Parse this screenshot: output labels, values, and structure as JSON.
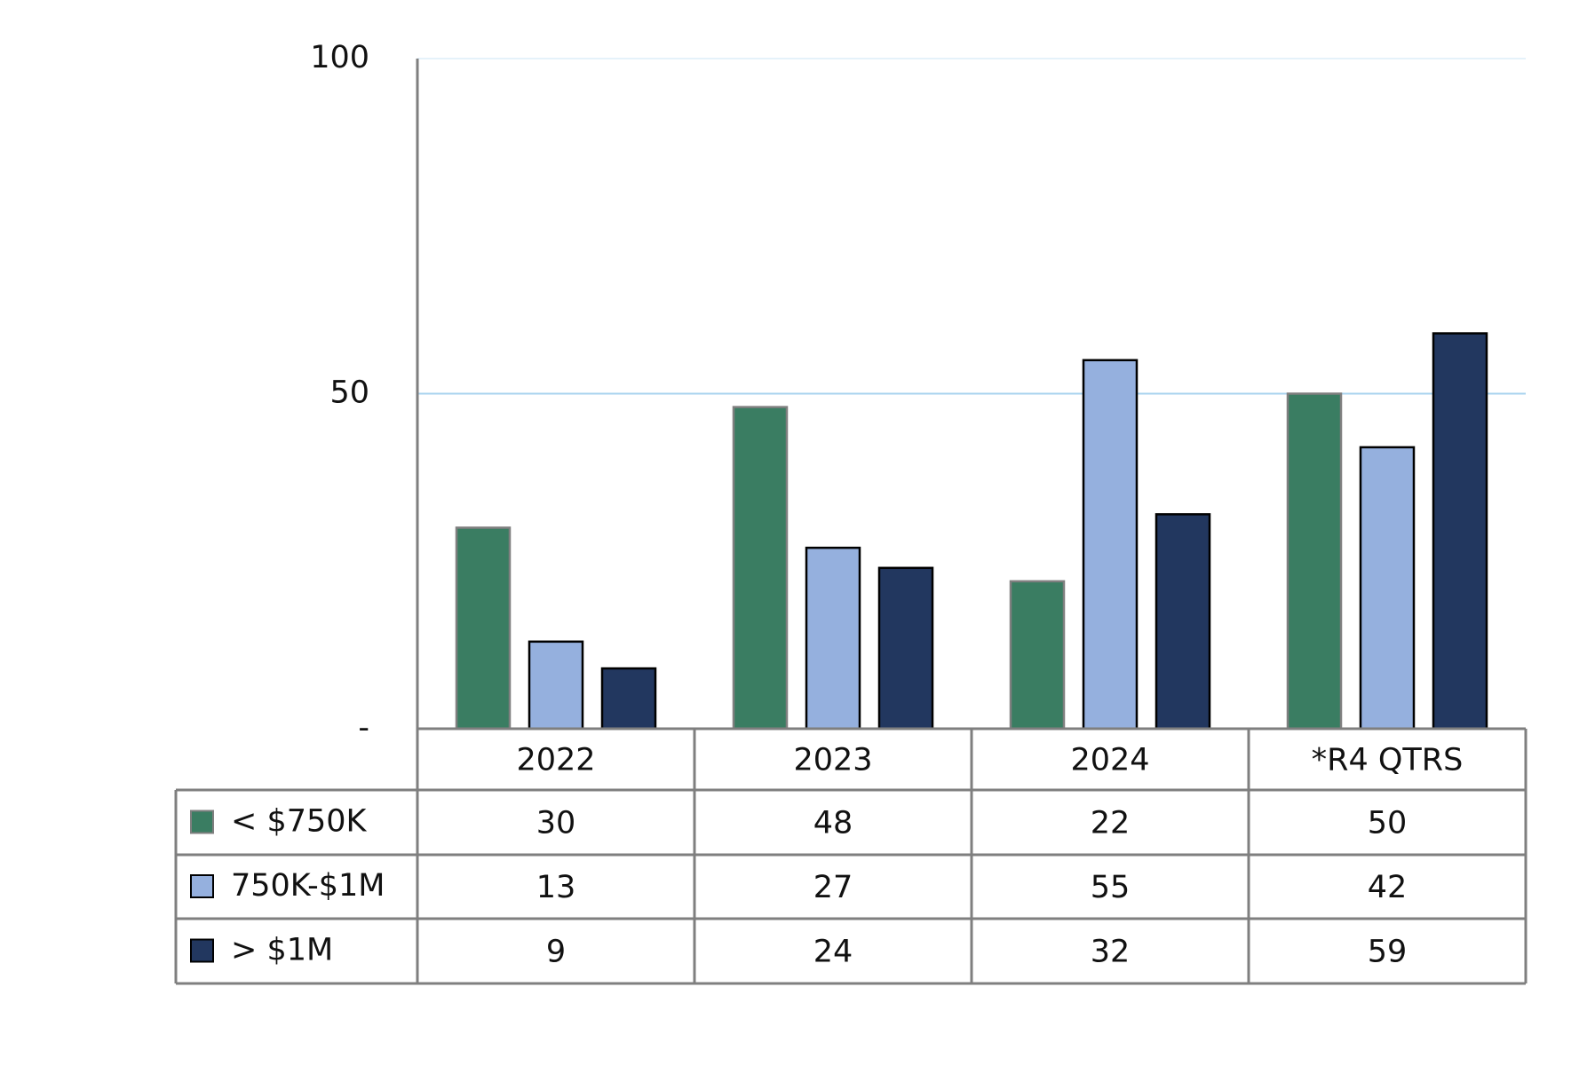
{
  "chart_data": {
    "type": "bar",
    "categories": [
      "2022",
      "2023",
      "2024",
      "*R4 QTRS"
    ],
    "series": [
      {
        "name": "< $750K",
        "color": "#3a7d62",
        "values": [
          30,
          48,
          22,
          50
        ]
      },
      {
        "name": "750K-$1M",
        "color": "#95b0de",
        "values": [
          13,
          27,
          55,
          42
        ]
      },
      {
        "name": "> $1M",
        "color": "#22375f",
        "values": [
          9,
          24,
          32,
          59
        ]
      }
    ],
    "ylim": [
      0,
      100
    ],
    "yticks": [
      {
        "value": 0,
        "label": "-"
      },
      50,
      100
    ],
    "grid": true,
    "grid_color": "#a9d3ef"
  }
}
